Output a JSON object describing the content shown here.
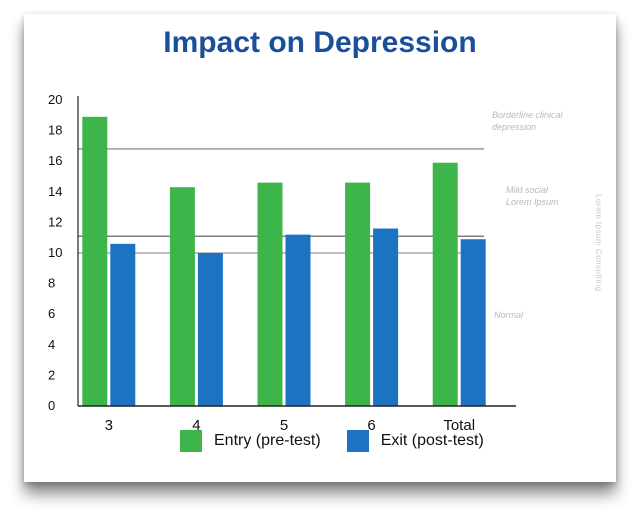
{
  "chart_data": {
    "type": "bar",
    "title": "Impact on Depression",
    "categories": [
      "3",
      "4",
      "5",
      "6",
      "Total"
    ],
    "series": [
      {
        "name": "Entry (pre-test)",
        "color": "#3db54a",
        "values": [
          18.9,
          14.3,
          14.6,
          14.6,
          15.9
        ]
      },
      {
        "name": "Exit (post-test)",
        "color": "#1c73c2",
        "values": [
          10.6,
          10.0,
          11.2,
          11.6,
          10.9
        ]
      }
    ],
    "ylim": [
      0,
      20
    ],
    "yticks": [
      "0",
      "2",
      "4",
      "6",
      "8",
      "10",
      "12",
      "14",
      "16",
      "18",
      "20"
    ],
    "xlabel": "",
    "ylabel": "",
    "grid": false,
    "legend_position": "bottom",
    "threshold_lines": [
      16.8,
      11.1,
      10.0
    ],
    "zones": [
      {
        "label_line1": "Borderline clinical",
        "label_line2": "depression"
      },
      {
        "label_line1": "Mild social",
        "label_line2": "Lorem Ipsum"
      },
      {
        "label_line1": "Normal",
        "label_line2": ""
      }
    ],
    "side_note": "Lorem Ipsum Consulting"
  }
}
